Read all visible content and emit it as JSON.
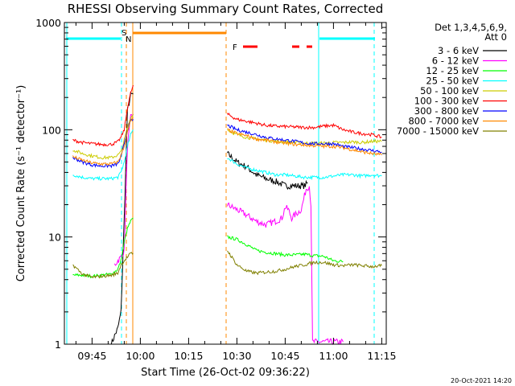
{
  "chart_data": {
    "type": "line",
    "title": "RHESSI Observing Summary Count Rates, Corrected",
    "xlabel": "Start Time (26-Oct-02 09:36:22)",
    "ylabel": "Corrected Count Rate (s⁻¹ detector⁻¹)",
    "y_scale": "log",
    "ylim": [
      1,
      1000
    ],
    "xlim_minutes_of_day": [
      576.4,
      676.4
    ],
    "x_ticks": [
      {
        "label": "09:45",
        "value": 585
      },
      {
        "label": "10:00",
        "value": 600
      },
      {
        "label": "10:15",
        "value": 615
      },
      {
        "label": "10:30",
        "value": 630
      },
      {
        "label": "10:45",
        "value": 645
      },
      {
        "label": "11:00",
        "value": 660
      },
      {
        "label": "11:15",
        "value": 675
      }
    ],
    "y_ticks": [
      {
        "label": "1",
        "value": 1
      },
      {
        "label": "10",
        "value": 10
      },
      {
        "label": "100",
        "value": 100
      },
      {
        "label": "1000",
        "value": 1000
      }
    ],
    "legend": {
      "placement": "right",
      "header": [
        "Det 1,3,4,5,6,9,",
        "Att 0"
      ]
    },
    "series": [
      {
        "name": "3 - 6 keV",
        "color": "#000000",
        "segments": [
          [
            [
              591,
              1.0
            ],
            [
              592,
              1.2
            ],
            [
              593,
              1.4
            ],
            [
              594,
              2.0
            ],
            [
              595,
              15
            ],
            [
              596,
              150
            ],
            [
              597,
              210
            ],
            [
              597.8,
              215
            ]
          ],
          [
            [
              627,
              60
            ],
            [
              630,
              50
            ],
            [
              633,
              45
            ],
            [
              636,
              38
            ],
            [
              639,
              35
            ],
            [
              642,
              33
            ],
            [
              645,
              30
            ],
            [
              648,
              30
            ],
            [
              651,
              30
            ],
            [
              652,
              32
            ]
          ]
        ]
      },
      {
        "name": "6 - 12 keV",
        "color": "#ff00ff",
        "segments": [
          [
            [
              592,
              5.5
            ],
            [
              593,
              6.0
            ],
            [
              594,
              6.5
            ],
            [
              595,
              7.5
            ],
            [
              596,
              70
            ],
            [
              597,
              130
            ],
            [
              597.8,
              140
            ]
          ],
          [
            [
              627,
              20
            ],
            [
              630,
              18
            ],
            [
              633,
              16
            ],
            [
              636,
              14
            ],
            [
              639,
              13
            ],
            [
              642,
              14
            ],
            [
              644,
              15
            ],
            [
              645,
              19
            ],
            [
              646,
              18
            ],
            [
              647,
              15
            ],
            [
              648,
              16
            ],
            [
              650,
              18
            ],
            [
              651.5,
              28
            ],
            [
              652.5,
              30
            ],
            [
              653,
              20
            ],
            [
              653.5,
              1.05
            ],
            [
              663,
              1.05
            ]
          ]
        ]
      },
      {
        "name": "12 - 25 keV",
        "color": "#00ff00",
        "segments": [
          [
            [
              579,
              4.4
            ],
            [
              582,
              4.4
            ],
            [
              585,
              4.3
            ],
            [
              588,
              4.4
            ],
            [
              591,
              4.5
            ],
            [
              593,
              5.0
            ],
            [
              594,
              6.0
            ],
            [
              595,
              9
            ],
            [
              596,
              12
            ],
            [
              597,
              14
            ],
            [
              597.8,
              15
            ]
          ],
          [
            [
              627,
              10
            ],
            [
              630,
              9.5
            ],
            [
              633,
              8.5
            ],
            [
              636,
              7.5
            ],
            [
              639,
              7.2
            ],
            [
              642,
              7.0
            ],
            [
              645,
              6.8
            ],
            [
              648,
              6.8
            ],
            [
              651,
              6.9
            ],
            [
              654,
              6.7
            ],
            [
              657,
              6.6
            ],
            [
              660,
              6.0
            ],
            [
              663,
              5.9
            ]
          ]
        ]
      },
      {
        "name": "25 - 50 keV",
        "color": "#00ffff",
        "segments": [
          [
            [
              579,
              38
            ],
            [
              582,
              36
            ],
            [
              585,
              35
            ],
            [
              588,
              35
            ],
            [
              591,
              35
            ],
            [
              593,
              36
            ],
            [
              594,
              40
            ],
            [
              595,
              50
            ],
            [
              596,
              70
            ],
            [
              597,
              90
            ],
            [
              597.8,
              100
            ]
          ],
          [
            [
              627,
              55
            ],
            [
              630,
              48
            ],
            [
              633,
              44
            ],
            [
              636,
              42
            ],
            [
              639,
              40
            ],
            [
              642,
              38
            ],
            [
              645,
              38
            ],
            [
              648,
              37
            ],
            [
              651,
              36
            ],
            [
              654,
              36
            ],
            [
              657,
              36
            ],
            [
              660,
              37
            ],
            [
              663,
              38
            ],
            [
              666,
              38
            ],
            [
              669,
              37
            ],
            [
              672,
              38
            ],
            [
              675,
              37
            ]
          ]
        ]
      },
      {
        "name": "50 - 100 keV",
        "color": "#cccc00",
        "segments": [
          [
            [
              579,
              65
            ],
            [
              582,
              60
            ],
            [
              585,
              57
            ],
            [
              588,
              55
            ],
            [
              591,
              55
            ],
            [
              593,
              58
            ],
            [
              594,
              62
            ],
            [
              595,
              80
            ],
            [
              596,
              105
            ],
            [
              597,
              130
            ],
            [
              597.8,
              140
            ]
          ],
          [
            [
              627,
              100
            ],
            [
              630,
              90
            ],
            [
              633,
              85
            ],
            [
              636,
              82
            ],
            [
              639,
              80
            ],
            [
              642,
              78
            ],
            [
              645,
              77
            ],
            [
              648,
              76
            ],
            [
              651,
              75
            ],
            [
              654,
              75
            ],
            [
              657,
              75
            ],
            [
              660,
              76
            ],
            [
              663,
              76
            ],
            [
              666,
              77
            ],
            [
              669,
              76
            ],
            [
              672,
              78
            ],
            [
              675,
              78
            ]
          ]
        ]
      },
      {
        "name": "100 - 300 keV",
        "color": "#ff0000",
        "segments": [
          [
            [
              579,
              80
            ],
            [
              582,
              76
            ],
            [
              585,
              74
            ],
            [
              588,
              73
            ],
            [
              591,
              73
            ],
            [
              593,
              77
            ],
            [
              594,
              85
            ],
            [
              595,
              100
            ],
            [
              596,
              160
            ],
            [
              597,
              220
            ],
            [
              597.8,
              260
            ]
          ],
          [
            [
              627,
              140
            ],
            [
              630,
              125
            ],
            [
              633,
              120
            ],
            [
              636,
              115
            ],
            [
              639,
              110
            ],
            [
              642,
              108
            ],
            [
              645,
              107
            ],
            [
              648,
              106
            ],
            [
              651,
              105
            ],
            [
              654,
              105
            ],
            [
              657,
              108
            ],
            [
              660,
              110
            ],
            [
              663,
              100
            ],
            [
              666,
              95
            ],
            [
              669,
              92
            ],
            [
              672,
              90
            ],
            [
              675,
              85
            ]
          ]
        ]
      },
      {
        "name": "300 - 800 keV",
        "color": "#0000ff",
        "segments": [
          [
            [
              579,
              55
            ],
            [
              582,
              50
            ],
            [
              585,
              47
            ],
            [
              588,
              46
            ],
            [
              591,
              46
            ],
            [
              593,
              48
            ],
            [
              594,
              55
            ],
            [
              595,
              75
            ],
            [
              596,
              100
            ],
            [
              597,
              120
            ],
            [
              597.8,
              125
            ]
          ],
          [
            [
              627,
              110
            ],
            [
              630,
              100
            ],
            [
              633,
              95
            ],
            [
              636,
              90
            ],
            [
              639,
              85
            ],
            [
              642,
              82
            ],
            [
              645,
              80
            ],
            [
              648,
              78
            ],
            [
              651,
              75
            ],
            [
              654,
              74
            ],
            [
              657,
              74
            ],
            [
              660,
              74
            ],
            [
              663,
              70
            ],
            [
              666,
              68
            ],
            [
              669,
              66
            ],
            [
              672,
              64
            ],
            [
              675,
              62
            ]
          ]
        ]
      },
      {
        "name": "800 - 7000 keV",
        "color": "#ff8800",
        "segments": [
          [
            [
              579,
              56
            ],
            [
              582,
              52
            ],
            [
              585,
              49
            ],
            [
              588,
              48
            ],
            [
              591,
              48
            ],
            [
              593,
              50
            ],
            [
              594,
              58
            ],
            [
              595,
              70
            ],
            [
              596,
              95
            ],
            [
              597,
              120
            ],
            [
              597.8,
              130
            ]
          ],
          [
            [
              627,
              100
            ],
            [
              630,
              92
            ],
            [
              633,
              88
            ],
            [
              636,
              82
            ],
            [
              639,
              80
            ],
            [
              642,
              77
            ],
            [
              645,
              75
            ],
            [
              648,
              73
            ],
            [
              651,
              72
            ],
            [
              654,
              71
            ],
            [
              657,
              70
            ],
            [
              660,
              70
            ],
            [
              663,
              68
            ],
            [
              666,
              65
            ],
            [
              669,
              62
            ],
            [
              672,
              60
            ],
            [
              675,
              58
            ]
          ]
        ]
      },
      {
        "name": "7000 - 15000 keV",
        "color": "#808000",
        "segments": [
          [
            [
              579,
              5.5
            ],
            [
              582,
              4.5
            ],
            [
              585,
              4.2
            ],
            [
              588,
              4.3
            ],
            [
              591,
              4.4
            ],
            [
              593,
              4.6
            ],
            [
              594,
              5.5
            ],
            [
              595,
              6
            ],
            [
              596,
              6.5
            ],
            [
              597,
              7
            ],
            [
              597.8,
              7
            ]
          ],
          [
            [
              627,
              7.5
            ],
            [
              630,
              5.5
            ],
            [
              633,
              4.8
            ],
            [
              636,
              4.6
            ],
            [
              639,
              4.7
            ],
            [
              642,
              4.8
            ],
            [
              645,
              5.0
            ],
            [
              648,
              5.3
            ],
            [
              651,
              5.5
            ],
            [
              654,
              5.8
            ],
            [
              657,
              5.8
            ],
            [
              660,
              5.5
            ],
            [
              663,
              5.4
            ],
            [
              666,
              5.5
            ],
            [
              669,
              5.4
            ],
            [
              672,
              5.3
            ],
            [
              675,
              5.4
            ]
          ]
        ]
      }
    ],
    "markers": [
      {
        "label": "S",
        "color": "#ff8800"
      },
      {
        "label": "N",
        "color": "#00ffff"
      },
      {
        "label": "F",
        "color": "#ff0000"
      }
    ],
    "footer_stamp": "20-Oct-2021 14:20"
  }
}
